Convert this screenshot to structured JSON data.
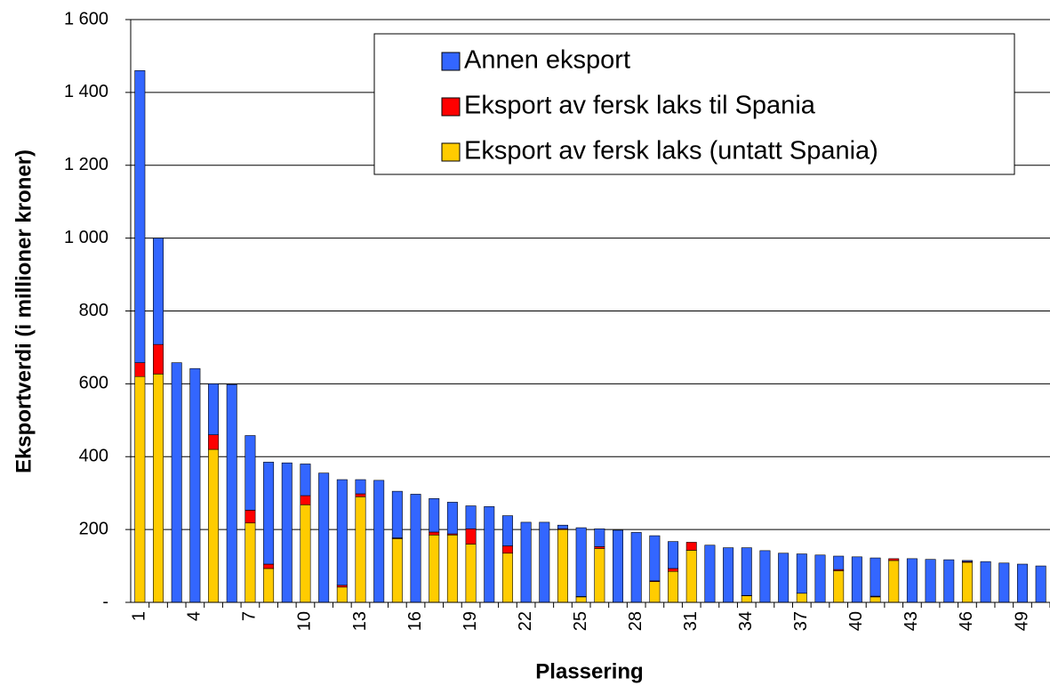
{
  "chart_data": {
    "type": "stacked-bar",
    "xlabel": "Plassering",
    "ylabel": "Eksportverdi (i millioner kroner)",
    "categories": [
      "1",
      null,
      null,
      "4",
      null,
      null,
      "7",
      null,
      null,
      "10",
      null,
      null,
      "13",
      null,
      null,
      "16",
      null,
      null,
      "19",
      null,
      null,
      "22",
      null,
      null,
      "25",
      null,
      null,
      "28",
      null,
      null,
      "31",
      null,
      null,
      "34",
      null,
      null,
      "37",
      null,
      null,
      "40",
      null,
      null,
      "43",
      null,
      null,
      "46",
      null,
      null,
      "49",
      null
    ],
    "series": [
      {
        "name": "Annen eksport",
        "color": "#3366ff",
        "values": [
          802,
          292,
          658,
          642,
          140,
          598,
          205,
          280,
          383,
          87,
          355,
          290,
          39,
          335,
          128,
          297,
          92,
          87,
          63,
          263,
          83,
          220,
          220,
          10,
          189,
          49,
          198,
          192,
          124,
          74,
          0,
          157,
          150,
          131,
          142,
          135,
          108,
          130,
          37,
          125,
          105,
          0,
          120,
          118,
          117,
          3,
          112,
          108,
          105,
          100
        ]
      },
      {
        "name": "Eksport av fersk laks til Spania",
        "color": "#ff0000",
        "values": [
          38,
          81,
          0,
          0,
          40,
          0,
          35,
          12,
          0,
          25,
          0,
          5,
          8,
          0,
          2,
          0,
          8,
          3,
          42,
          0,
          20,
          0,
          0,
          2,
          1,
          5,
          0,
          0,
          2,
          8,
          22,
          0,
          0,
          1,
          0,
          0,
          0,
          0,
          3,
          0,
          2,
          5,
          0,
          0,
          0,
          2,
          0,
          0,
          0,
          0
        ]
      },
      {
        "name": "Eksport av fersk laks (untatt Spania)",
        "color": "#ffcc00",
        "values": [
          620,
          627,
          0,
          0,
          420,
          0,
          218,
          93,
          0,
          268,
          0,
          42,
          290,
          0,
          175,
          0,
          185,
          185,
          160,
          0,
          135,
          0,
          0,
          200,
          15,
          148,
          0,
          0,
          57,
          85,
          143,
          0,
          0,
          18,
          0,
          0,
          25,
          0,
          87,
          0,
          15,
          115,
          0,
          0,
          0,
          110,
          0,
          0,
          0,
          0
        ]
      }
    ],
    "ylim": [
      0,
      1600
    ],
    "yticks": [
      {
        "value": 0,
        "label": "-"
      },
      200,
      400,
      600,
      800,
      {
        "value": 1000,
        "label": "1 000"
      },
      {
        "value": 1200,
        "label": "1 200"
      },
      {
        "value": 1400,
        "label": "1 400"
      },
      {
        "value": 1600,
        "label": "1 600"
      }
    ],
    "grid": true,
    "legend": "top-right"
  }
}
